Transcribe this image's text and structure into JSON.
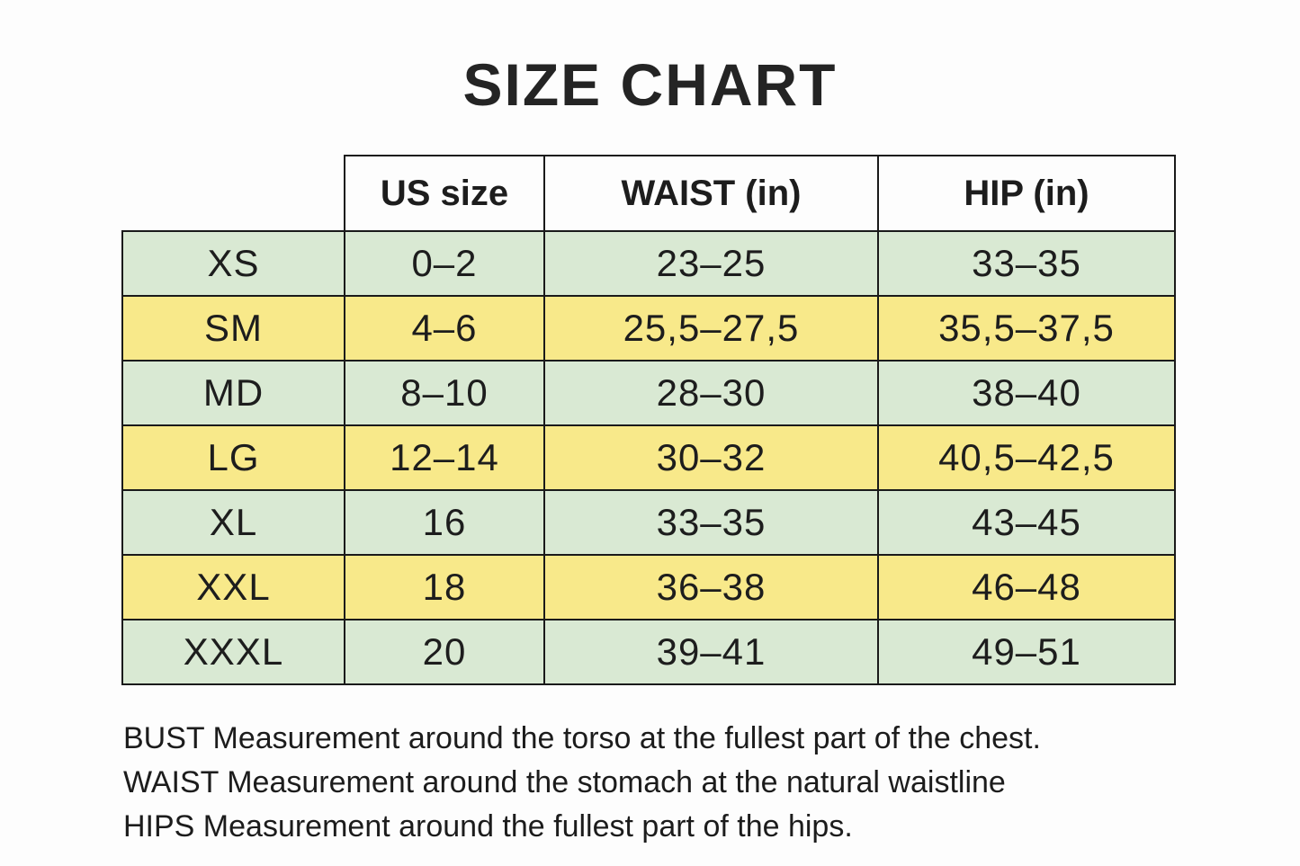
{
  "page": {
    "title": "SIZE CHART"
  },
  "chart_data": {
    "type": "table",
    "title": "SIZE CHART",
    "columns": [
      "US size",
      "WAIST (in)",
      "HIP (in)"
    ],
    "rows": [
      {
        "size": "XS",
        "us_size": "0–2",
        "waist_in": "23–25",
        "hip_in": "33–35"
      },
      {
        "size": "SM",
        "us_size": "4–6",
        "waist_in": "25,5–27,5",
        "hip_in": "35,5–37,5"
      },
      {
        "size": "MD",
        "us_size": "8–10",
        "waist_in": "28–30",
        "hip_in": "38–40"
      },
      {
        "size": "LG",
        "us_size": "12–14",
        "waist_in": "30–32",
        "hip_in": "40,5–42,5"
      },
      {
        "size": "XL",
        "us_size": "16",
        "waist_in": "33–35",
        "hip_in": "43–45"
      },
      {
        "size": "XXL",
        "us_size": "18",
        "waist_in": "36–38",
        "hip_in": "46–48"
      },
      {
        "size": "XXXL",
        "us_size": "20",
        "waist_in": "39–41",
        "hip_in": "49–51"
      }
    ],
    "row_color_order": [
      "row_green",
      "row_yellow",
      "row_green",
      "row_yellow",
      "row_green",
      "row_yellow",
      "row_green"
    ]
  },
  "notes": {
    "lines": [
      "BUST Measurement around the torso at the fullest part of the chest.",
      "WAIST Measurement around the stomach at the natural waistline",
      "HIPS Measurement around the fullest part of the hips."
    ]
  },
  "colors": {
    "row_green": "#d9e9d3",
    "row_yellow": "#f8e98a",
    "border": "#1a1a1a",
    "text": "#1d1d1d",
    "background": "#fdfdfd"
  }
}
